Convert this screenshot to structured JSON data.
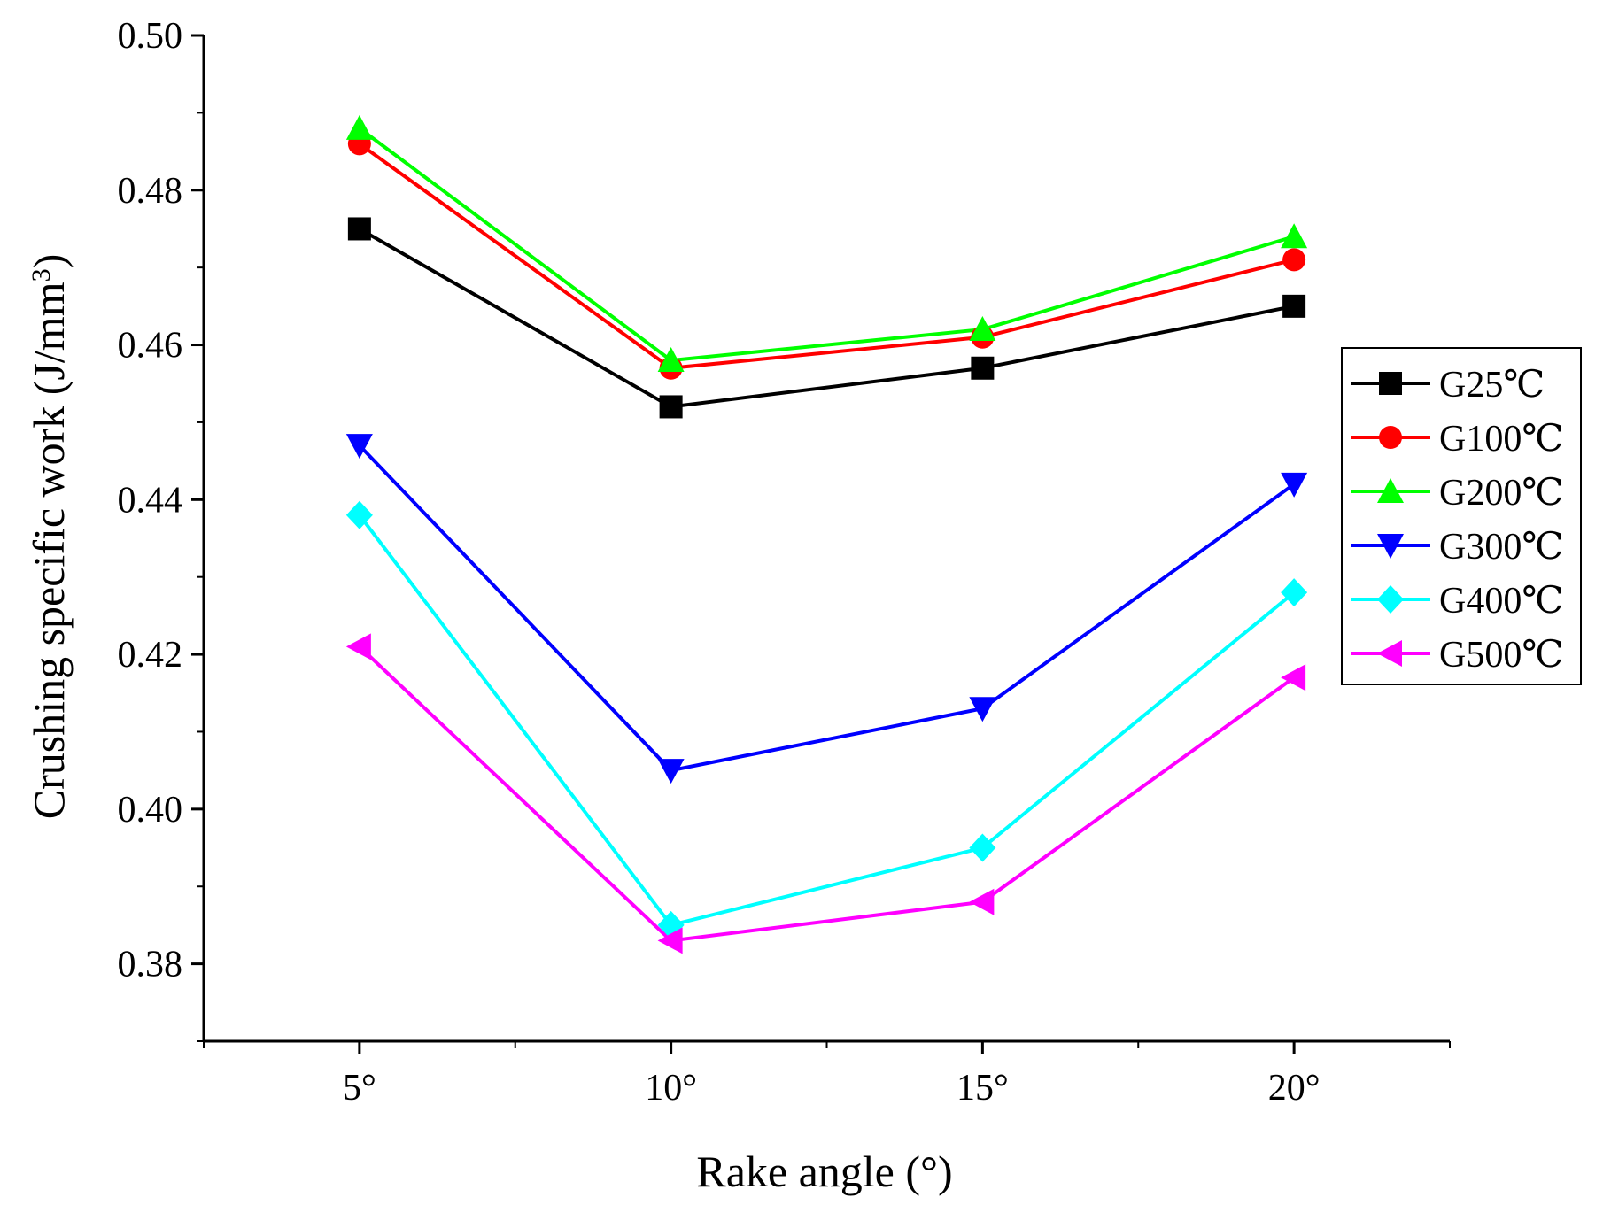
{
  "chart_data": {
    "type": "line",
    "title": "",
    "xlabel": "Rake angle (°)",
    "ylabel_main": "Crushing specific work (J/mm",
    "ylabel_sup": "3",
    "ylabel_close": ")",
    "categories": [
      "5°",
      "10°",
      "15°",
      "20°"
    ],
    "x": [
      5,
      10,
      15,
      20
    ],
    "xlim": [
      2.5,
      22.5
    ],
    "ylim": [
      0.37,
      0.5
    ],
    "yticks": [
      0.38,
      0.4,
      0.42,
      0.44,
      0.46,
      0.48,
      0.5
    ],
    "ytick_labels": [
      "0.38",
      "0.40",
      "0.42",
      "0.44",
      "0.46",
      "0.48",
      "0.50"
    ],
    "grid": false,
    "legend_position": "right",
    "series": [
      {
        "name": "G25℃",
        "color": "#000000",
        "marker": "square",
        "values": [
          0.475,
          0.452,
          0.457,
          0.465
        ]
      },
      {
        "name": "G100℃",
        "color": "#ff0000",
        "marker": "circle",
        "values": [
          0.486,
          0.457,
          0.461,
          0.471
        ]
      },
      {
        "name": "G200℃",
        "color": "#00ff00",
        "marker": "triangle-up",
        "values": [
          0.488,
          0.458,
          0.462,
          0.474
        ]
      },
      {
        "name": "G300℃",
        "color": "#0000ff",
        "marker": "triangle-down",
        "values": [
          0.447,
          0.405,
          0.413,
          0.442
        ]
      },
      {
        "name": "G400℃",
        "color": "#00ffff",
        "marker": "diamond",
        "values": [
          0.438,
          0.385,
          0.395,
          0.428
        ]
      },
      {
        "name": "G500℃",
        "color": "#ff00ff",
        "marker": "triangle-left",
        "values": [
          0.421,
          0.383,
          0.388,
          0.417
        ]
      }
    ]
  }
}
